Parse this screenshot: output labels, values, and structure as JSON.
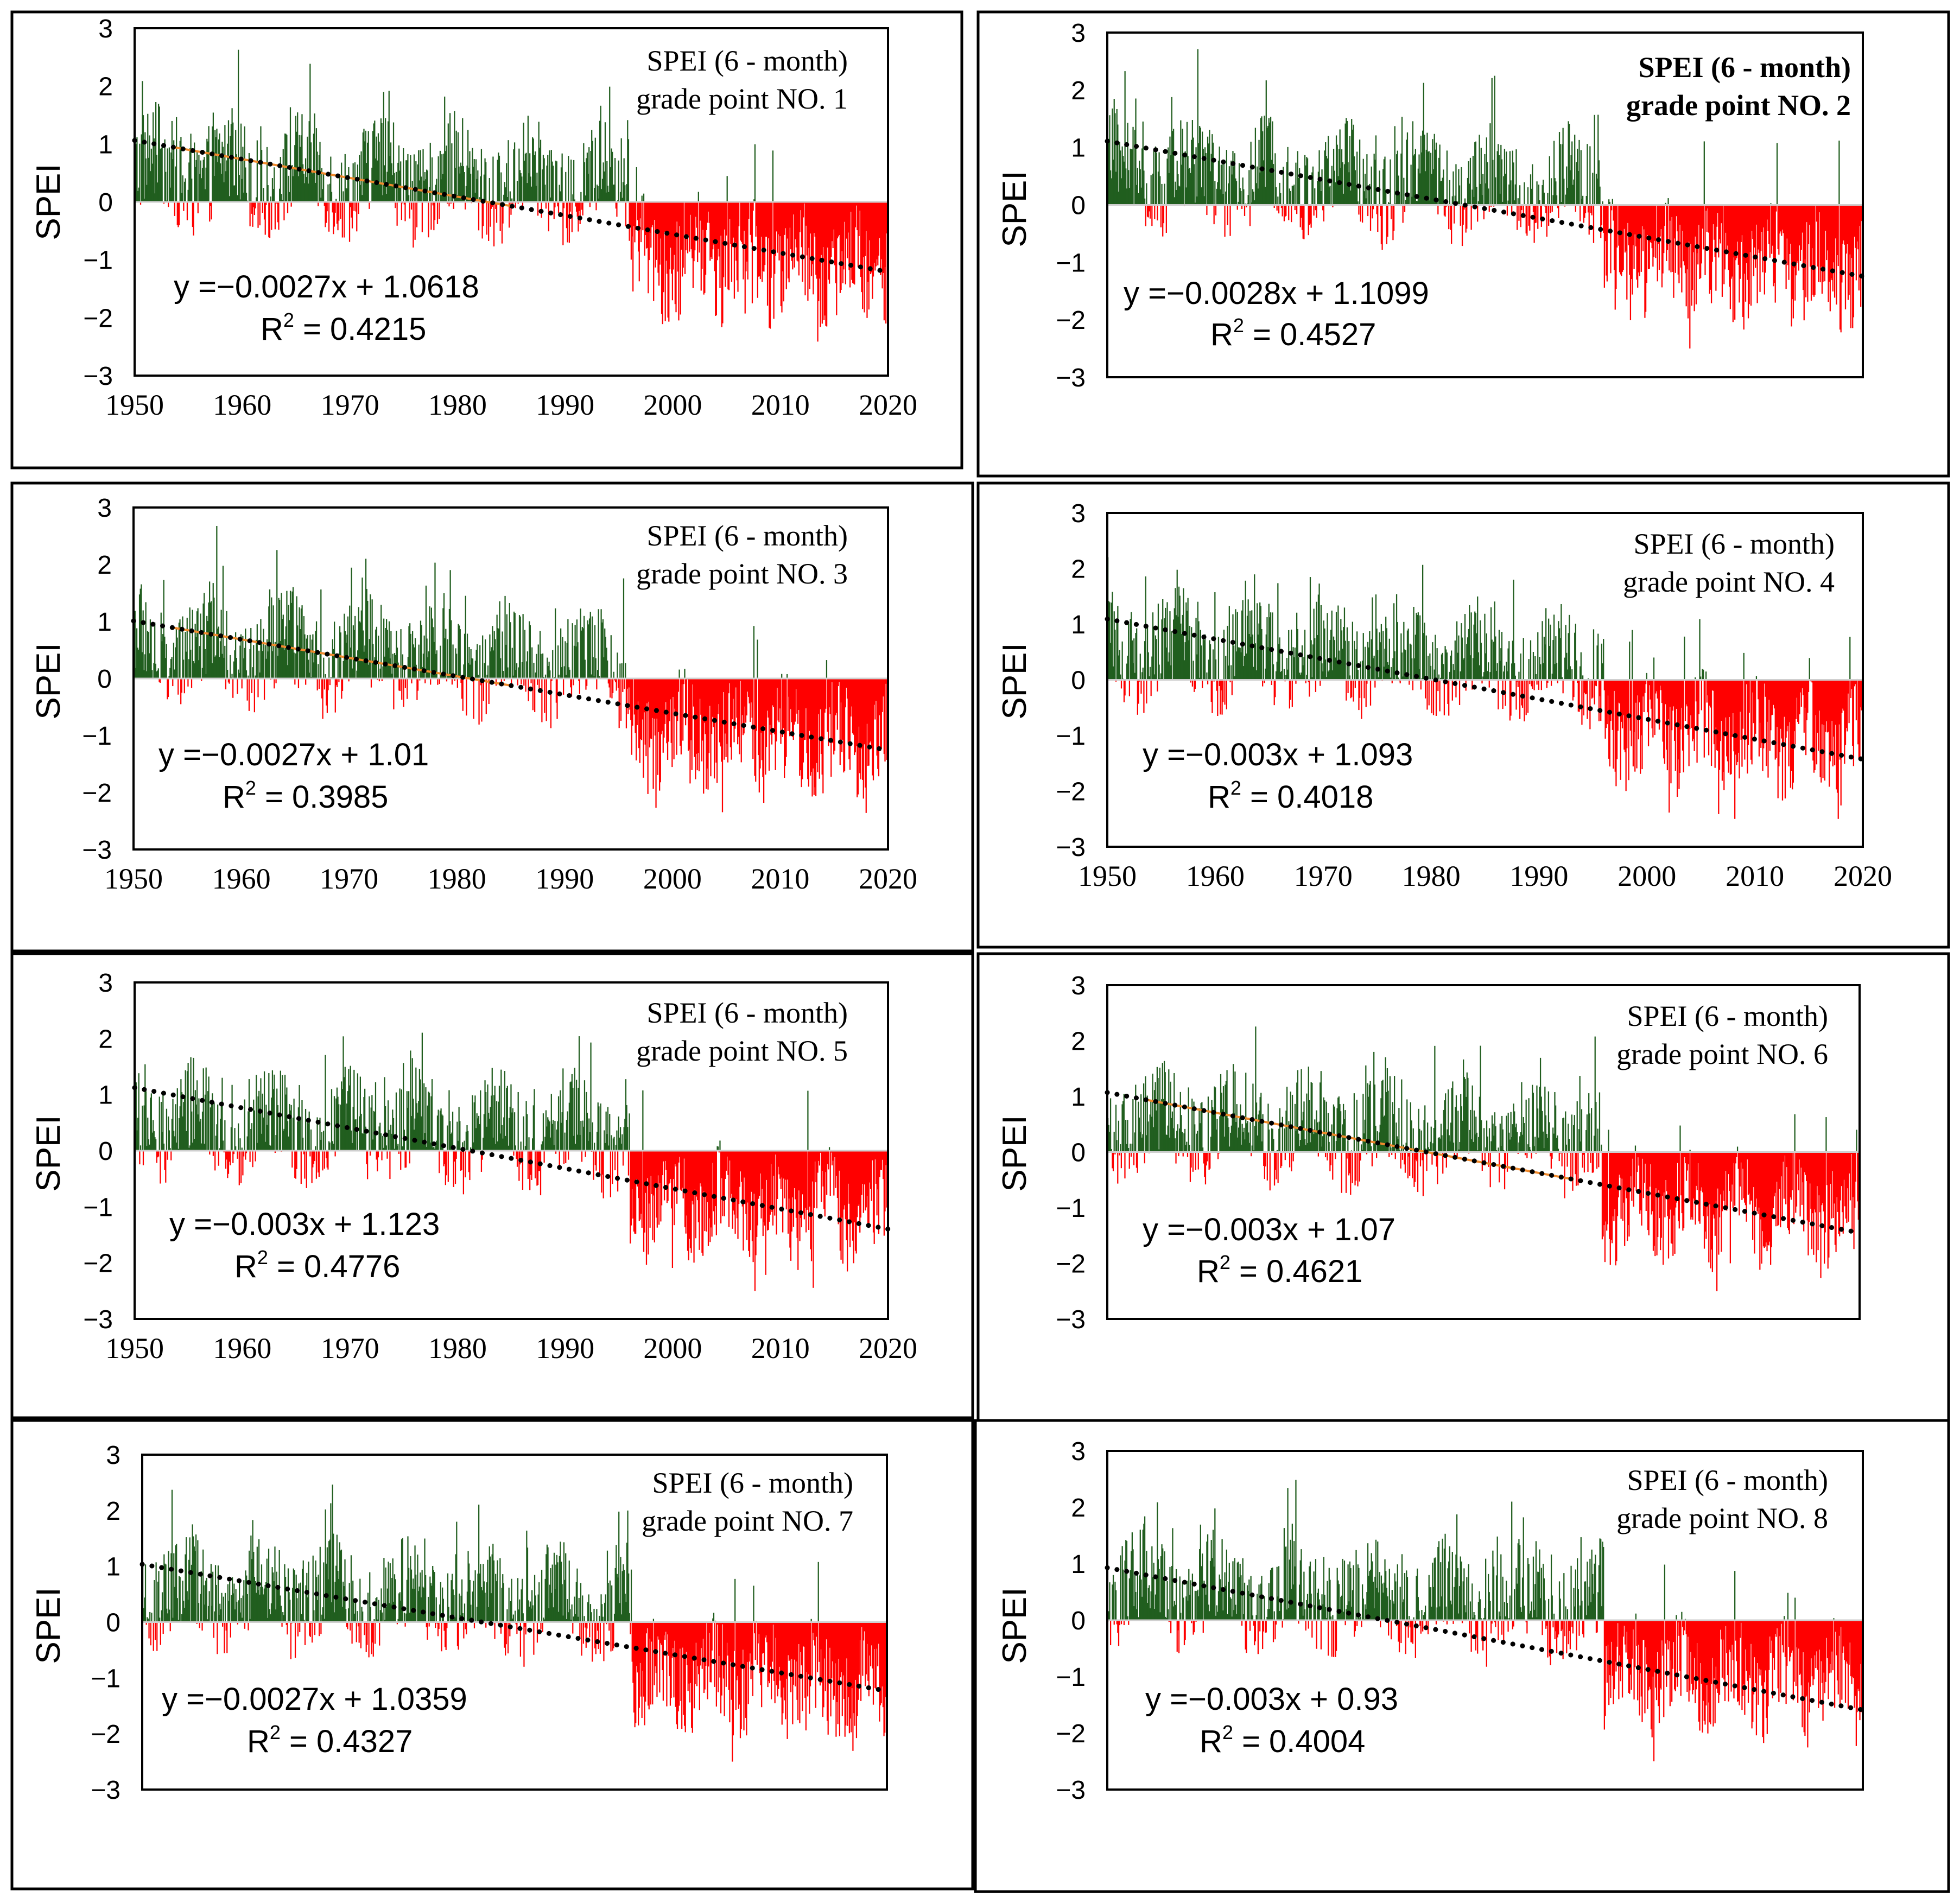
{
  "chart_data": [
    {
      "type": "bar",
      "title": "SPEI  (6 - month)",
      "subtitle": "grade point NO. 1",
      "ylabel": "SPEI",
      "xlim": [
        1950,
        2020
      ],
      "ylim": [
        -3,
        3
      ],
      "yticks": [
        3,
        2,
        1,
        0,
        -1,
        -2,
        -3
      ],
      "xticks": [
        1950,
        1960,
        1970,
        1980,
        1990,
        2000,
        2010,
        2020
      ],
      "show_xticks": true,
      "equation": "y =−0.0027x + 1.0618",
      "r2_label": "R",
      "r2_sup": "2",
      "r2_value": " = 0.4215",
      "trend": {
        "slope_per_month": -0.0027,
        "intercept": 1.0618
      },
      "series": [
        {
          "name": "SPEI >= 0",
          "color": "#215e1f"
        },
        {
          "name": "SPEI < 0",
          "color": "#ff0000"
        }
      ],
      "bold_title": false
    },
    {
      "type": "bar",
      "title": "SPEI  (6 - month)",
      "subtitle": "grade point NO. 2",
      "ylabel": "SPEI",
      "xlim": [
        1950,
        2020
      ],
      "ylim": [
        -3,
        3
      ],
      "yticks": [
        3,
        2,
        1,
        0,
        -1,
        -2,
        -3
      ],
      "xticks": [],
      "show_xticks": false,
      "equation": "y =−0.0028x + 1.1099",
      "r2_label": "R",
      "r2_sup": "2",
      "r2_value": " = 0.4527",
      "trend": {
        "slope_per_month": -0.0028,
        "intercept": 1.1099
      },
      "series": [
        {
          "name": "SPEI >= 0",
          "color": "#215e1f"
        },
        {
          "name": "SPEI < 0",
          "color": "#ff0000"
        }
      ],
      "bold_title": true
    },
    {
      "type": "bar",
      "title": "SPEI  (6 - month)",
      "subtitle": "grade point NO. 3",
      "ylabel": "SPEI",
      "xlim": [
        1950,
        2020
      ],
      "ylim": [
        -3,
        3
      ],
      "yticks": [
        3,
        2,
        1,
        0,
        -1,
        -2,
        -3
      ],
      "xticks": [
        1950,
        1960,
        1970,
        1980,
        1990,
        2000,
        2010,
        2020
      ],
      "show_xticks": true,
      "equation": "y =−0.0027x + 1.01",
      "r2_label": "R",
      "r2_sup": "2",
      "r2_value": " = 0.3985",
      "trend": {
        "slope_per_month": -0.0027,
        "intercept": 1.01
      },
      "series": [
        {
          "name": "SPEI >= 0",
          "color": "#215e1f"
        },
        {
          "name": "SPEI < 0",
          "color": "#ff0000"
        }
      ],
      "bold_title": false
    },
    {
      "type": "bar",
      "title": "SPEI  (6 - month)",
      "subtitle": "grade point NO. 4",
      "ylabel": "SPEI",
      "xlim": [
        1950,
        2020
      ],
      "ylim": [
        -3,
        3
      ],
      "yticks": [
        3,
        2,
        1,
        0,
        -1,
        -2,
        -3
      ],
      "xticks": [
        1950,
        1960,
        1970,
        1980,
        1990,
        2000,
        2010,
        2020
      ],
      "show_xticks": true,
      "equation": "y =−0.003x + 1.093",
      "r2_label": "R",
      "r2_sup": "2",
      "r2_value": " = 0.4018",
      "trend": {
        "slope_per_month": -0.003,
        "intercept": 1.093
      },
      "series": [
        {
          "name": "SPEI >= 0",
          "color": "#215e1f"
        },
        {
          "name": "SPEI < 0",
          "color": "#ff0000"
        }
      ],
      "bold_title": false
    },
    {
      "type": "bar",
      "title": "SPEI  (6 - month)",
      "subtitle": "grade point NO. 5",
      "ylabel": "SPEI",
      "xlim": [
        1950,
        2020
      ],
      "ylim": [
        -3,
        3
      ],
      "yticks": [
        3,
        2,
        1,
        0,
        -1,
        -2,
        -3
      ],
      "xticks": [
        1950,
        1960,
        1970,
        1980,
        1990,
        2000,
        2010,
        2020
      ],
      "show_xticks": true,
      "equation": "y =−0.003x + 1.123",
      "r2_label": "R",
      "r2_sup": "2",
      "r2_value": " = 0.4776",
      "trend": {
        "slope_per_month": -0.003,
        "intercept": 1.123
      },
      "series": [
        {
          "name": "SPEI >= 0",
          "color": "#215e1f"
        },
        {
          "name": "SPEI < 0",
          "color": "#ff0000"
        }
      ],
      "bold_title": false
    },
    {
      "type": "bar",
      "title": "SPEI  (6 - month)",
      "subtitle": "grade point NO. 6",
      "ylabel": "SPEI",
      "xlim": [
        1950,
        2020
      ],
      "ylim": [
        -3,
        3
      ],
      "yticks": [
        3,
        2,
        1,
        0,
        -1,
        -2,
        -3
      ],
      "xticks": [],
      "show_xticks": false,
      "equation": "y =−0.003x + 1.07",
      "r2_label": "R",
      "r2_sup": "2",
      "r2_value": " = 0.4621",
      "trend": {
        "slope_per_month": -0.003,
        "intercept": 1.07
      },
      "series": [
        {
          "name": "SPEI >= 0",
          "color": "#215e1f"
        },
        {
          "name": "SPEI < 0",
          "color": "#ff0000"
        }
      ],
      "bold_title": false
    },
    {
      "type": "bar",
      "title": "SPEI  (6 - month)",
      "subtitle": "grade point NO. 7",
      "ylabel": "SPEI",
      "xlim": [
        1950,
        2020
      ],
      "ylim": [
        -3,
        3
      ],
      "yticks": [
        3,
        2,
        1,
        0,
        -1,
        -2,
        -3
      ],
      "xticks": [],
      "show_xticks": false,
      "equation": "y =−0.0027x + 1.0359",
      "r2_label": "R",
      "r2_sup": "2",
      "r2_value": " = 0.4327",
      "trend": {
        "slope_per_month": -0.0027,
        "intercept": 1.0359
      },
      "series": [
        {
          "name": "SPEI >= 0",
          "color": "#215e1f"
        },
        {
          "name": "SPEI < 0",
          "color": "#ff0000"
        }
      ],
      "bold_title": false
    },
    {
      "type": "bar",
      "title": "SPEI  (6 - month)",
      "subtitle": "grade point NO. 8",
      "ylabel": "SPEI",
      "xlim": [
        1950,
        2020
      ],
      "ylim": [
        -3,
        3
      ],
      "yticks": [
        3,
        2,
        1,
        0,
        -1,
        -2,
        -3
      ],
      "xticks": [],
      "show_xticks": false,
      "equation": "y =−0.003x + 0.93",
      "r2_label": "R",
      "r2_sup": "2",
      "r2_value": " = 0.4004",
      "trend": {
        "slope_per_month": -0.003,
        "intercept": 0.93
      },
      "series": [
        {
          "name": "SPEI >= 0",
          "color": "#215e1f"
        },
        {
          "name": "SPEI < 0",
          "color": "#ff0000"
        }
      ],
      "bold_title": false
    }
  ]
}
